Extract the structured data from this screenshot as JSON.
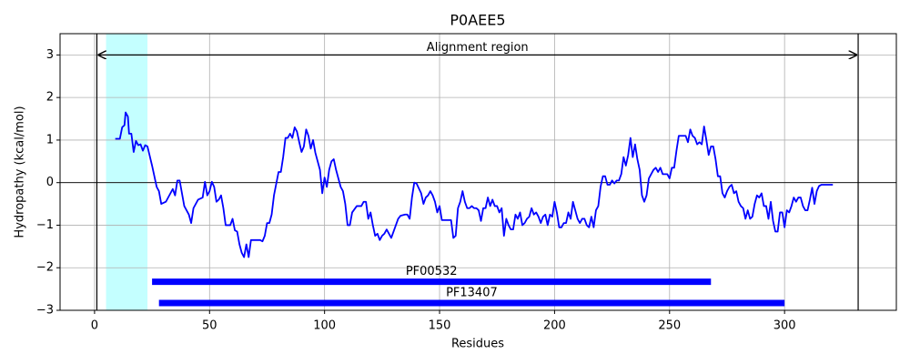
{
  "chart_data": {
    "type": "line",
    "title": "P0AEE5",
    "xlabel": "Residues",
    "ylabel": "Hydropathy (kcal/mol)",
    "color": "#0000ff",
    "grid": true,
    "xlim": [
      -15,
      348.6
    ],
    "ylim": [
      -3,
      3.5
    ],
    "xticks": [
      0,
      50,
      100,
      150,
      200,
      250,
      300
    ],
    "yticks": [
      {
        "value": -3,
        "label": "−3"
      },
      {
        "value": -2,
        "label": "−2"
      },
      {
        "value": -1,
        "label": "−1"
      },
      0,
      1,
      2,
      3
    ],
    "highlight_span": [
      5,
      23
    ],
    "span_color": "#c4ffff",
    "alignment": {
      "text": "Alignment region",
      "start": 1,
      "end": 332,
      "y": 3
    },
    "zero_line": 0,
    "domains": [
      {
        "name": "PF00532",
        "start": 25,
        "end": 268,
        "y": -2.33
      },
      {
        "name": "PF13407",
        "start": 28,
        "end": 300,
        "y": -2.83
      }
    ],
    "x": [
      9,
      11,
      12,
      13,
      13.5,
      14.5,
      15,
      16,
      17,
      18,
      19,
      20,
      21,
      22,
      23,
      25,
      27,
      28,
      29,
      31,
      33,
      34,
      35,
      36,
      37,
      39,
      41,
      42,
      43,
      45,
      47,
      48,
      49,
      50,
      51,
      52,
      53,
      54,
      55,
      56,
      57,
      59,
      60,
      61,
      62,
      63,
      64,
      65,
      66,
      67,
      68,
      70,
      72,
      73,
      74,
      75,
      76,
      77,
      78,
      80,
      81,
      82,
      83,
      84,
      85,
      86,
      87,
      88,
      89,
      90,
      91,
      92,
      93,
      94,
      95,
      96,
      98,
      99,
      100,
      101,
      102,
      103,
      104,
      105,
      107,
      108,
      109,
      110,
      111,
      112,
      114,
      116,
      117,
      118,
      119,
      120,
      121,
      122,
      123,
      124,
      125,
      126,
      127,
      128,
      129,
      130,
      132,
      133,
      135,
      136,
      137,
      138,
      139,
      140,
      142,
      143,
      144,
      145,
      146,
      147,
      148,
      149,
      150,
      151,
      153,
      155,
      156,
      157,
      158,
      159,
      160,
      161,
      162,
      163,
      164,
      165,
      166,
      167,
      168,
      169,
      170,
      171,
      172,
      173,
      174,
      175,
      176,
      177,
      178,
      179,
      180,
      181,
      182,
      183,
      184,
      185,
      186,
      187,
      188,
      189,
      190,
      191,
      192,
      193,
      194,
      195,
      196,
      197,
      198,
      199,
      200,
      201,
      202,
      203,
      204,
      205,
      206,
      207,
      208,
      209,
      210,
      211,
      212,
      213,
      214,
      215,
      216,
      217,
      218,
      219,
      220,
      221,
      222,
      223,
      224,
      225,
      226,
      227,
      228,
      229,
      230,
      231,
      232,
      233,
      234,
      235,
      236,
      237,
      238,
      239,
      240,
      241,
      243,
      244,
      245,
      246,
      247,
      248,
      249,
      250,
      251,
      252,
      253,
      254,
      256,
      257,
      258,
      259,
      260,
      261,
      262,
      263,
      264,
      265,
      266,
      267,
      268,
      269,
      270,
      271,
      272,
      273,
      274,
      275,
      276,
      277,
      278,
      279,
      280,
      281,
      282,
      283,
      284,
      285,
      286,
      287,
      288,
      289,
      290,
      291,
      292,
      293,
      294,
      295,
      296,
      297,
      298,
      299,
      300,
      301,
      302,
      303,
      304,
      305,
      306,
      307,
      308,
      309,
      310,
      311,
      312,
      313,
      314,
      315,
      316,
      317,
      319,
      321
    ],
    "values": [
      1.03,
      1.03,
      1.3,
      1.35,
      1.65,
      1.55,
      1.15,
      1.15,
      0.72,
      0.98,
      0.88,
      0.9,
      0.75,
      0.88,
      0.85,
      0.4,
      -0.1,
      -0.2,
      -0.5,
      -0.45,
      -0.25,
      -0.15,
      -0.3,
      0.05,
      0.05,
      -0.55,
      -0.75,
      -0.95,
      -0.6,
      -0.4,
      -0.35,
      0.02,
      -0.3,
      -0.2,
      0.02,
      -0.1,
      -0.45,
      -0.4,
      -0.3,
      -0.6,
      -1.0,
      -1.0,
      -0.85,
      -1.12,
      -1.15,
      -1.45,
      -1.65,
      -1.75,
      -1.45,
      -1.75,
      -1.35,
      -1.35,
      -1.35,
      -1.38,
      -1.25,
      -0.95,
      -0.95,
      -0.75,
      -0.3,
      0.25,
      0.25,
      0.6,
      1.05,
      1.05,
      1.15,
      1.05,
      1.3,
      1.2,
      0.95,
      0.72,
      0.85,
      1.25,
      1.1,
      0.8,
      1.0,
      0.7,
      0.3,
      -0.25,
      0.12,
      -0.1,
      0.3,
      0.5,
      0.55,
      0.3,
      -0.1,
      -0.2,
      -0.5,
      -1.0,
      -1.0,
      -0.7,
      -0.55,
      -0.55,
      -0.45,
      -0.45,
      -0.85,
      -0.7,
      -1.0,
      -1.25,
      -1.2,
      -1.35,
      -1.25,
      -1.2,
      -1.1,
      -1.2,
      -1.3,
      -1.15,
      -0.85,
      -0.78,
      -0.75,
      -0.75,
      -0.85,
      -0.35,
      0.0,
      -0.02,
      -0.25,
      -0.5,
      -0.35,
      -0.3,
      -0.2,
      -0.3,
      -0.45,
      -0.7,
      -0.55,
      -0.88,
      -0.88,
      -0.88,
      -1.3,
      -1.25,
      -0.6,
      -0.45,
      -0.2,
      -0.45,
      -0.6,
      -0.6,
      -0.55,
      -0.6,
      -0.6,
      -0.65,
      -0.9,
      -0.6,
      -0.6,
      -0.35,
      -0.55,
      -0.4,
      -0.55,
      -0.55,
      -0.7,
      -0.6,
      -1.25,
      -0.85,
      -1.0,
      -1.1,
      -1.1,
      -0.75,
      -0.85,
      -0.7,
      -1.0,
      -0.95,
      -0.85,
      -0.8,
      -0.6,
      -0.75,
      -0.7,
      -0.8,
      -0.95,
      -0.8,
      -0.75,
      -1.0,
      -0.75,
      -0.8,
      -0.45,
      -0.7,
      -1.05,
      -1.05,
      -0.95,
      -0.95,
      -0.7,
      -0.85,
      -0.45,
      -0.65,
      -0.85,
      -0.95,
      -0.85,
      -0.85,
      -1.0,
      -1.05,
      -0.8,
      -1.05,
      -0.65,
      -0.55,
      -0.1,
      0.15,
      0.15,
      -0.05,
      -0.05,
      0.05,
      -0.02,
      0.05,
      0.05,
      0.2,
      0.6,
      0.4,
      0.65,
      1.05,
      0.6,
      0.9,
      0.55,
      0.3,
      -0.3,
      -0.45,
      -0.3,
      0.1,
      0.3,
      0.35,
      0.25,
      0.35,
      0.2,
      0.2,
      0.2,
      0.1,
      0.35,
      0.35,
      0.75,
      1.1,
      1.1,
      1.1,
      0.95,
      1.25,
      1.1,
      1.05,
      0.9,
      0.95,
      0.9,
      1.32,
      1.0,
      0.65,
      0.85,
      0.85,
      0.55,
      0.15,
      0.15,
      -0.25,
      -0.35,
      -0.2,
      -0.1,
      -0.05,
      -0.25,
      -0.2,
      -0.45,
      -0.55,
      -0.6,
      -0.85,
      -0.65,
      -0.85,
      -0.8,
      -0.5,
      -0.3,
      -0.35,
      -0.25,
      -0.55,
      -0.55,
      -0.85,
      -0.45,
      -0.9,
      -1.15,
      -1.15,
      -0.7,
      -0.7,
      -1.05,
      -0.65,
      -0.7,
      -0.55,
      -0.35,
      -0.45,
      -0.35,
      -0.35,
      -0.55,
      -0.65,
      -0.65,
      -0.4,
      -0.12,
      -0.5,
      -0.2,
      -0.08,
      -0.05,
      -0.05,
      -0.05,
      -0.05
    ]
  }
}
